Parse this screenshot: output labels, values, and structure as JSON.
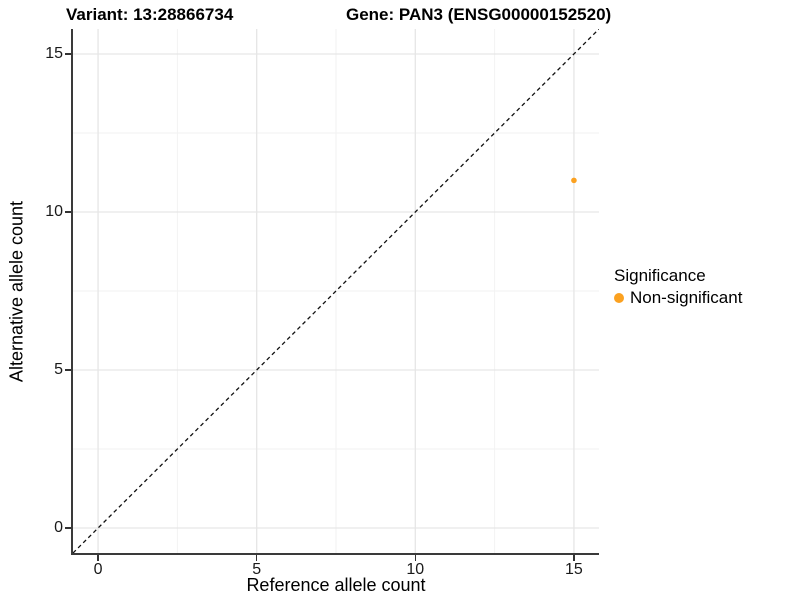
{
  "chart_data": {
    "type": "scatter",
    "title_left": "Variant: 13:28866734",
    "title_right": "Gene: PAN3 (ENSG00000152520)",
    "xlabel": "Reference allele count",
    "ylabel": "Alternative allele count",
    "xlim": [
      -0.79,
      15.79
    ],
    "ylim": [
      -0.79,
      15.79
    ],
    "x_ticks": [
      0,
      5,
      10,
      15
    ],
    "y_ticks": [
      0,
      5,
      10,
      15
    ],
    "x_minor_ticks": [
      2.5,
      7.5,
      12.5
    ],
    "y_minor_ticks": [
      2.5,
      7.5,
      12.5
    ],
    "grid": "on",
    "reference_line": {
      "type": "identity",
      "slope": 1,
      "intercept": 0,
      "style": "dashed",
      "color": "#111111"
    },
    "series": [
      {
        "name": "Non-significant",
        "color": "#FBA120",
        "points": [
          {
            "x": 15,
            "y": 11
          }
        ]
      }
    ],
    "legend": {
      "title": "Significance",
      "position": "right",
      "items": [
        {
          "label": "Non-significant",
          "color": "#FBA120"
        }
      ]
    },
    "colors": {
      "grid_major": "#e6e6e6",
      "grid_minor": "#f2f2f2",
      "axis_line": "#3a3a3a",
      "tick_text": "#1a1a1a"
    }
  }
}
